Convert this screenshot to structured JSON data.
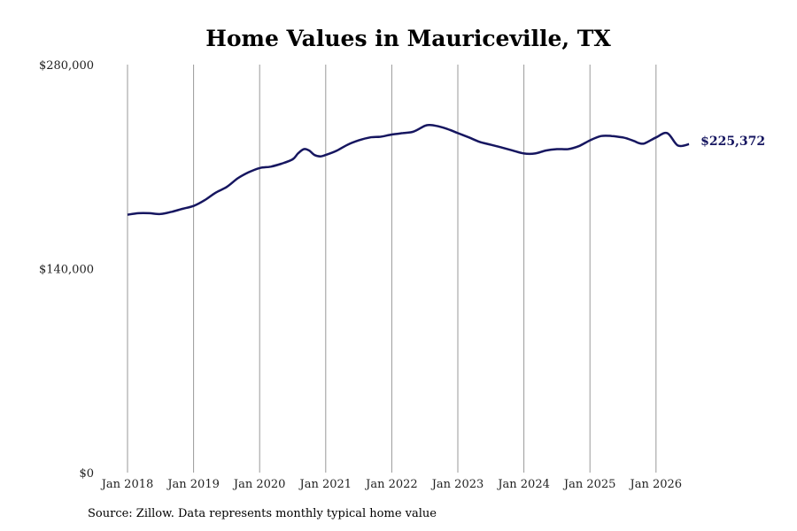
{
  "chart_data": {
    "type": "line",
    "title": "Home Values in Mauriceville, TX",
    "xlabel": "",
    "ylabel": "",
    "ylim": [
      0,
      280000
    ],
    "y_ticks": [
      {
        "value": 0,
        "label": "$0"
      },
      {
        "value": 140000,
        "label": "$140,000"
      },
      {
        "value": 280000,
        "label": "$280,000"
      }
    ],
    "x_ticks": [
      {
        "value": 2018,
        "label": "Jan 2018"
      },
      {
        "value": 2019,
        "label": "Jan 2019"
      },
      {
        "value": 2020,
        "label": "Jan 2020"
      },
      {
        "value": 2021,
        "label": "Jan 2021"
      },
      {
        "value": 2022,
        "label": "Jan 2022"
      },
      {
        "value": 2023,
        "label": "Jan 2023"
      },
      {
        "value": 2024,
        "label": "Jan 2024"
      },
      {
        "value": 2025,
        "label": "Jan 2025"
      },
      {
        "value": 2026,
        "label": "Jan 2026"
      }
    ],
    "xlim": [
      2018,
      2026.5
    ],
    "grid": "vertical",
    "line_color": "#161660",
    "end_label": "$225,372",
    "series": [
      {
        "name": "",
        "x": [
          2018.0,
          2018.17,
          2018.33,
          2018.5,
          2018.67,
          2018.83,
          2019.0,
          2019.17,
          2019.33,
          2019.5,
          2019.67,
          2019.83,
          2020.0,
          2020.17,
          2020.33,
          2020.5,
          2020.58,
          2020.67,
          2020.75,
          2020.83,
          2020.92,
          2021.0,
          2021.17,
          2021.33,
          2021.5,
          2021.67,
          2021.83,
          2022.0,
          2022.17,
          2022.33,
          2022.5,
          2022.58,
          2022.67,
          2022.83,
          2023.0,
          2023.17,
          2023.33,
          2023.5,
          2023.67,
          2023.83,
          2024.0,
          2024.17,
          2024.33,
          2024.5,
          2024.67,
          2024.83,
          2025.0,
          2025.17,
          2025.33,
          2025.5,
          2025.58,
          2025.67,
          2025.75,
          2025.83,
          2026.0,
          2026.17,
          2026.33,
          2026.5
        ],
        "values": [
          177000,
          178000,
          178000,
          177500,
          179000,
          181000,
          183000,
          187000,
          192000,
          196000,
          202000,
          206000,
          209000,
          210000,
          212000,
          215000,
          219000,
          222000,
          221000,
          218000,
          217000,
          218000,
          221000,
          225000,
          228000,
          230000,
          230500,
          232000,
          233000,
          234000,
          238000,
          238500,
          238000,
          236000,
          233000,
          230000,
          227000,
          225000,
          223000,
          221000,
          219000,
          219000,
          221000,
          222000,
          222000,
          224000,
          228000,
          231000,
          231000,
          230000,
          229000,
          227500,
          226000,
          226000,
          230000,
          233000,
          224500,
          225372
        ]
      }
    ]
  },
  "source_note": "Source: Zillow. Data represents monthly typical home value"
}
